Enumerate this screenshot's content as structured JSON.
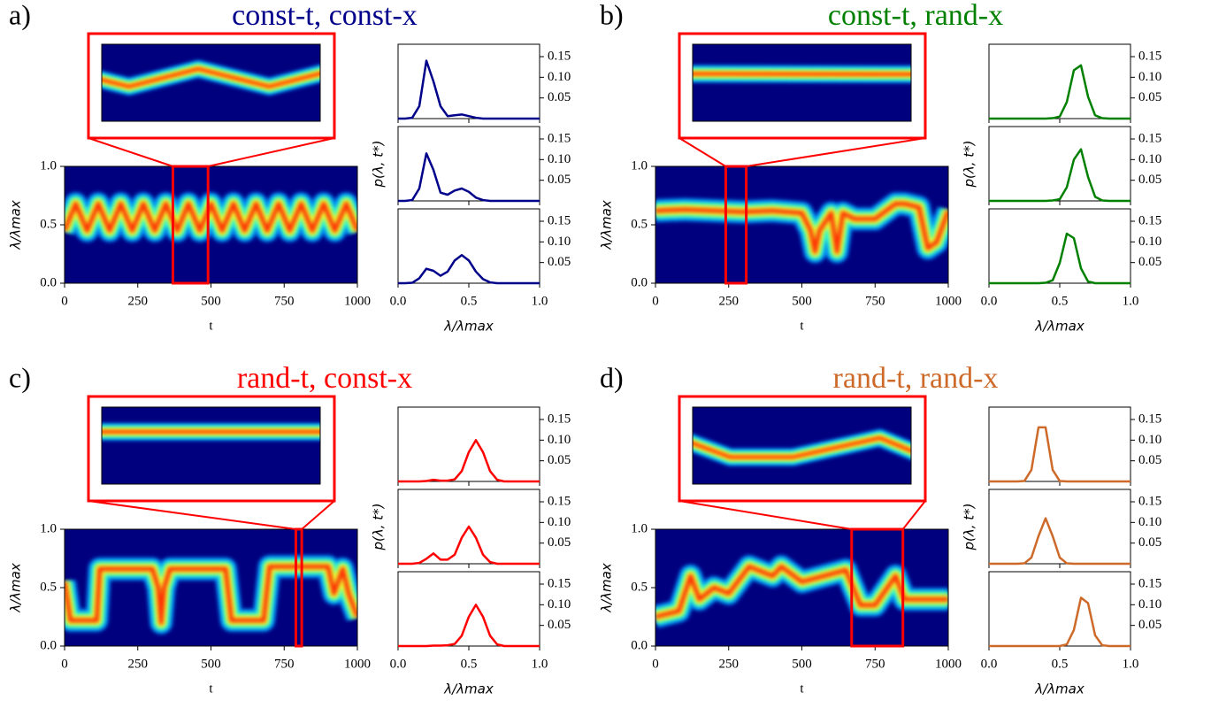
{
  "chart_data": [
    {
      "type": "heatmap",
      "label": "a)",
      "title": "const-t, const-x",
      "title_color": "#00008b",
      "xlabel": "t",
      "ylabel": "λ/λmax",
      "xlim": [
        0,
        1000
      ],
      "xticks": [
        0,
        250,
        500,
        750,
        1000
      ],
      "ylim": [
        0,
        1
      ],
      "yticks": [
        {
          "value": 0,
          "label": "0.0"
        },
        0.5,
        {
          "value": 1,
          "label": "1.0"
        }
      ],
      "zoom": [
        370,
        490
      ],
      "ridge": {
        "x": [
          0,
          38,
          77,
          115,
          154,
          192,
          231,
          269,
          308,
          346,
          385,
          423,
          462,
          500,
          538,
          577,
          615,
          654,
          692,
          731,
          769,
          808,
          846,
          885,
          923,
          962,
          1000
        ],
        "values": [
          0.45,
          0.68,
          0.45,
          0.68,
          0.45,
          0.68,
          0.45,
          0.68,
          0.45,
          0.68,
          0.45,
          0.68,
          0.45,
          0.68,
          0.45,
          0.68,
          0.45,
          0.68,
          0.45,
          0.68,
          0.45,
          0.68,
          0.45,
          0.68,
          0.45,
          0.68,
          0.45
        ]
      },
      "dist": {
        "xlabel": "λ/λmax",
        "ylabel": "p(λ, t*)",
        "xlim": [
          0,
          1
        ],
        "xticks": [
          {
            "value": 0,
            "label": "0.0"
          },
          0.5,
          {
            "value": 1,
            "label": "1.0"
          }
        ],
        "ylim": [
          0,
          0.18
        ],
        "yticks": [
          0.05,
          {
            "value": 0.1,
            "label": "0.10"
          },
          0.15
        ],
        "color": "#00008b",
        "x": [
          0,
          0.05,
          0.1,
          0.15,
          0.2,
          0.25,
          0.3,
          0.35,
          0.4,
          0.45,
          0.5,
          0.55,
          0.6,
          0.65,
          0.7,
          0.75,
          0.8,
          0.85,
          0.9,
          0.95,
          1
        ],
        "series": [
          {
            "values": [
              0,
              0,
              0.002,
              0.03,
              0.14,
              0.09,
              0.03,
              0.006,
              0.008,
              0.01,
              0.006,
              0.002,
              0,
              0,
              0,
              0,
              0,
              0,
              0,
              0,
              0
            ]
          },
          {
            "values": [
              0,
              0,
              0.002,
              0.03,
              0.115,
              0.075,
              0.02,
              0.015,
              0.025,
              0.03,
              0.022,
              0.008,
              0.002,
              0,
              0,
              0,
              0,
              0,
              0,
              0,
              0
            ]
          },
          {
            "values": [
              0,
              0,
              0.001,
              0.012,
              0.035,
              0.03,
              0.018,
              0.028,
              0.055,
              0.068,
              0.055,
              0.028,
              0.01,
              0.002,
              0,
              0,
              0,
              0,
              0,
              0,
              0
            ]
          }
        ]
      }
    },
    {
      "type": "heatmap",
      "label": "b)",
      "title": "const-t, rand-x",
      "title_color": "#008000",
      "xlabel": "t",
      "ylabel": "λ/λmax",
      "xlim": [
        0,
        1000
      ],
      "xticks": [
        0,
        250,
        500,
        750,
        1000
      ],
      "ylim": [
        0,
        1
      ],
      "yticks": [
        {
          "value": 0,
          "label": "0.0"
        },
        0.5,
        {
          "value": 1,
          "label": "1.0"
        }
      ],
      "zoom": [
        240,
        310
      ],
      "ridge": {
        "x": [
          0,
          100,
          200,
          300,
          400,
          500,
          530,
          545,
          560,
          600,
          620,
          640,
          680,
          750,
          820,
          850,
          900,
          930,
          960,
          1000
        ],
        "values": [
          0.62,
          0.63,
          0.62,
          0.61,
          0.62,
          0.6,
          0.45,
          0.27,
          0.45,
          0.6,
          0.27,
          0.6,
          0.55,
          0.55,
          0.68,
          0.68,
          0.65,
          0.3,
          0.35,
          0.62
        ]
      },
      "dist": {
        "xlabel": "λ/λmax",
        "ylabel": "p(λ, t*)",
        "xlim": [
          0,
          1
        ],
        "xticks": [
          {
            "value": 0,
            "label": "0.0"
          },
          0.5,
          {
            "value": 1,
            "label": "1.0"
          }
        ],
        "ylim": [
          0,
          0.18
        ],
        "yticks": [
          0.05,
          {
            "value": 0.1,
            "label": "0.10"
          },
          0.15
        ],
        "color": "#008000",
        "x": [
          0,
          0.05,
          0.1,
          0.15,
          0.2,
          0.25,
          0.3,
          0.35,
          0.4,
          0.45,
          0.5,
          0.55,
          0.6,
          0.65,
          0.7,
          0.75,
          0.8,
          0.85,
          0.9,
          0.95,
          1
        ],
        "series": [
          {
            "values": [
              0,
              0,
              0,
              0,
              0,
              0,
              0,
              0,
              0,
              0.001,
              0.005,
              0.04,
              0.117,
              0.129,
              0.053,
              0.008,
              0.001,
              0,
              0,
              0,
              0
            ]
          },
          {
            "values": [
              0,
              0,
              0,
              0,
              0,
              0,
              0,
              0,
              0,
              0.001,
              0.004,
              0.033,
              0.1,
              0.125,
              0.058,
              0.01,
              0.001,
              0,
              0,
              0,
              0
            ]
          },
          {
            "values": [
              0,
              0,
              0,
              0,
              0,
              0,
              0,
              0,
              0.001,
              0.007,
              0.049,
              0.12,
              0.109,
              0.036,
              0.004,
              0,
              0,
              0,
              0,
              0,
              0
            ]
          }
        ]
      }
    },
    {
      "type": "heatmap",
      "label": "c)",
      "title": "rand-t, const-x",
      "title_color": "#ff0000",
      "xlabel": "t",
      "ylabel": "λ/λmax",
      "xlim": [
        0,
        1000
      ],
      "xticks": [
        0,
        250,
        500,
        750,
        1000
      ],
      "ylim": [
        0,
        1
      ],
      "yticks": [
        {
          "value": 0,
          "label": "0.0"
        },
        0.5,
        {
          "value": 1,
          "label": "1.0"
        }
      ],
      "zoom": [
        790,
        810
      ],
      "ridge": {
        "x": [
          0,
          20,
          30,
          110,
          120,
          300,
          320,
          330,
          340,
          360,
          550,
          570,
          600,
          680,
          700,
          900,
          920,
          950,
          970,
          1000
        ],
        "values": [
          0.55,
          0.22,
          0.22,
          0.22,
          0.66,
          0.66,
          0.5,
          0.2,
          0.5,
          0.66,
          0.66,
          0.22,
          0.22,
          0.22,
          0.68,
          0.68,
          0.45,
          0.66,
          0.45,
          0.25
        ]
      },
      "dist": {
        "xlabel": "λ/λmax",
        "ylabel": "p(λ, t*)",
        "xlim": [
          0,
          1
        ],
        "xticks": [
          {
            "value": 0,
            "label": "0.0"
          },
          0.5,
          {
            "value": 1,
            "label": "1.0"
          }
        ],
        "ylim": [
          0,
          0.18
        ],
        "yticks": [
          0.05,
          {
            "value": 0.1,
            "label": "0.10"
          },
          0.15
        ],
        "color": "#ff0000",
        "x": [
          0,
          0.05,
          0.1,
          0.15,
          0.2,
          0.25,
          0.3,
          0.35,
          0.4,
          0.45,
          0.5,
          0.55,
          0.6,
          0.65,
          0.7,
          0.75,
          0.8,
          0.85,
          0.9,
          0.95,
          1
        ],
        "series": [
          {
            "values": [
              0,
              0,
              0,
              0,
              0.001,
              0.004,
              0.002,
              0.002,
              0.005,
              0.025,
              0.071,
              0.1,
              0.071,
              0.025,
              0.004,
              0,
              0,
              0,
              0,
              0,
              0
            ]
          },
          {
            "values": [
              0,
              0,
              0,
              0.002,
              0.012,
              0.025,
              0.01,
              0.01,
              0.022,
              0.063,
              0.09,
              0.063,
              0.022,
              0.004,
              0,
              0,
              0,
              0,
              0,
              0,
              0
            ]
          },
          {
            "values": [
              0,
              0,
              0,
              0,
              0,
              0.001,
              0.001,
              0.002,
              0.005,
              0.025,
              0.071,
              0.1,
              0.071,
              0.025,
              0.004,
              0,
              0,
              0,
              0,
              0,
              0
            ]
          }
        ]
      }
    },
    {
      "type": "heatmap",
      "label": "d)",
      "title": "rand-t, rand-x",
      "title_color": "#cd6a2a",
      "xlabel": "t",
      "ylabel": "λ/λmax",
      "xlim": [
        0,
        1000
      ],
      "xticks": [
        0,
        250,
        500,
        750,
        1000
      ],
      "ylim": [
        0,
        1
      ],
      "yticks": [
        {
          "value": 0,
          "label": "0.0"
        },
        0.5,
        {
          "value": 1,
          "label": "1.0"
        }
      ],
      "zoom": [
        670,
        845
      ],
      "ridge": {
        "x": [
          0,
          80,
          120,
          150,
          200,
          250,
          320,
          400,
          430,
          500,
          650,
          700,
          750,
          820,
          850,
          1000
        ],
        "values": [
          0.25,
          0.3,
          0.6,
          0.4,
          0.5,
          0.45,
          0.68,
          0.6,
          0.68,
          0.55,
          0.65,
          0.35,
          0.35,
          0.6,
          0.4,
          0.4
        ]
      },
      "dist": {
        "xlabel": "λ/λmax",
        "ylabel": "p(λ, t*)",
        "xlim": [
          0,
          1
        ],
        "xticks": [
          {
            "value": 0,
            "label": "0.0"
          },
          0.5,
          {
            "value": 1,
            "label": "1.0"
          }
        ],
        "ylim": [
          0,
          0.18
        ],
        "yticks": [
          0.05,
          {
            "value": 0.1,
            "label": "0.10"
          },
          0.15
        ],
        "color": "#cd6a2a",
        "x": [
          0,
          0.05,
          0.1,
          0.15,
          0.2,
          0.25,
          0.3,
          0.35,
          0.4,
          0.45,
          0.5,
          0.55,
          0.6,
          0.65,
          0.7,
          0.75,
          0.8,
          0.85,
          0.9,
          0.95,
          1
        ],
        "series": [
          {
            "values": [
              0,
              0,
              0,
              0,
              0,
              0.001,
              0.028,
              0.131,
              0.131,
              0.028,
              0.001,
              0,
              0,
              0,
              0,
              0,
              0,
              0,
              0,
              0,
              0
            ]
          },
          {
            "values": [
              0,
              0,
              0,
              0,
              0,
              0.001,
              0.015,
              0.067,
              0.11,
              0.067,
              0.015,
              0.001,
              0,
              0,
              0,
              0,
              0,
              0,
              0,
              0,
              0
            ]
          },
          {
            "values": [
              0,
              0,
              0,
              0,
              0,
              0,
              0,
              0,
              0,
              0,
              0,
              0.004,
              0.039,
              0.117,
              0.104,
              0.026,
              0.002,
              0,
              0,
              0,
              0
            ]
          }
        ]
      }
    }
  ]
}
